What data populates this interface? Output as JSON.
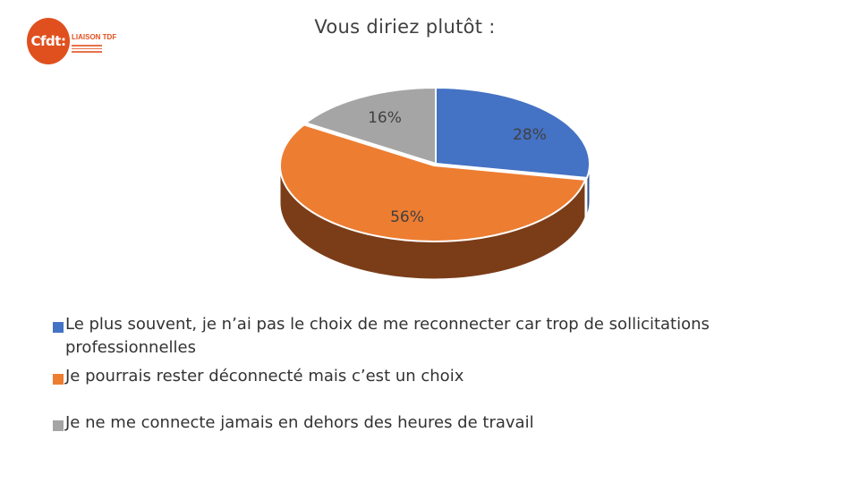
{
  "logo": {
    "mark": "Cfdt:",
    "subtitle": "LIAISON TDF"
  },
  "chart_data": {
    "type": "pie",
    "title": "Vous diriez plutôt :",
    "slices": [
      {
        "label": "Le plus souvent, je n’ai pas le choix de me reconnecter car trop de sollicitations professionnelles",
        "value": 28,
        "display": "28%",
        "color": "#4472c4",
        "side_color": "#2f528f"
      },
      {
        "label": "Je pourrais rester déconnecté mais c’est un choix",
        "value": 56,
        "display": "56%",
        "color": "#ed7d31",
        "side_color": "#7b3d18"
      },
      {
        "label": "Je ne me connecte jamais en dehors des heures de travail",
        "value": 16,
        "display": "16%",
        "color": "#a5a5a5",
        "side_color": "#6b6b6b"
      }
    ],
    "legend_position": "bottom-left",
    "style": "3d"
  }
}
